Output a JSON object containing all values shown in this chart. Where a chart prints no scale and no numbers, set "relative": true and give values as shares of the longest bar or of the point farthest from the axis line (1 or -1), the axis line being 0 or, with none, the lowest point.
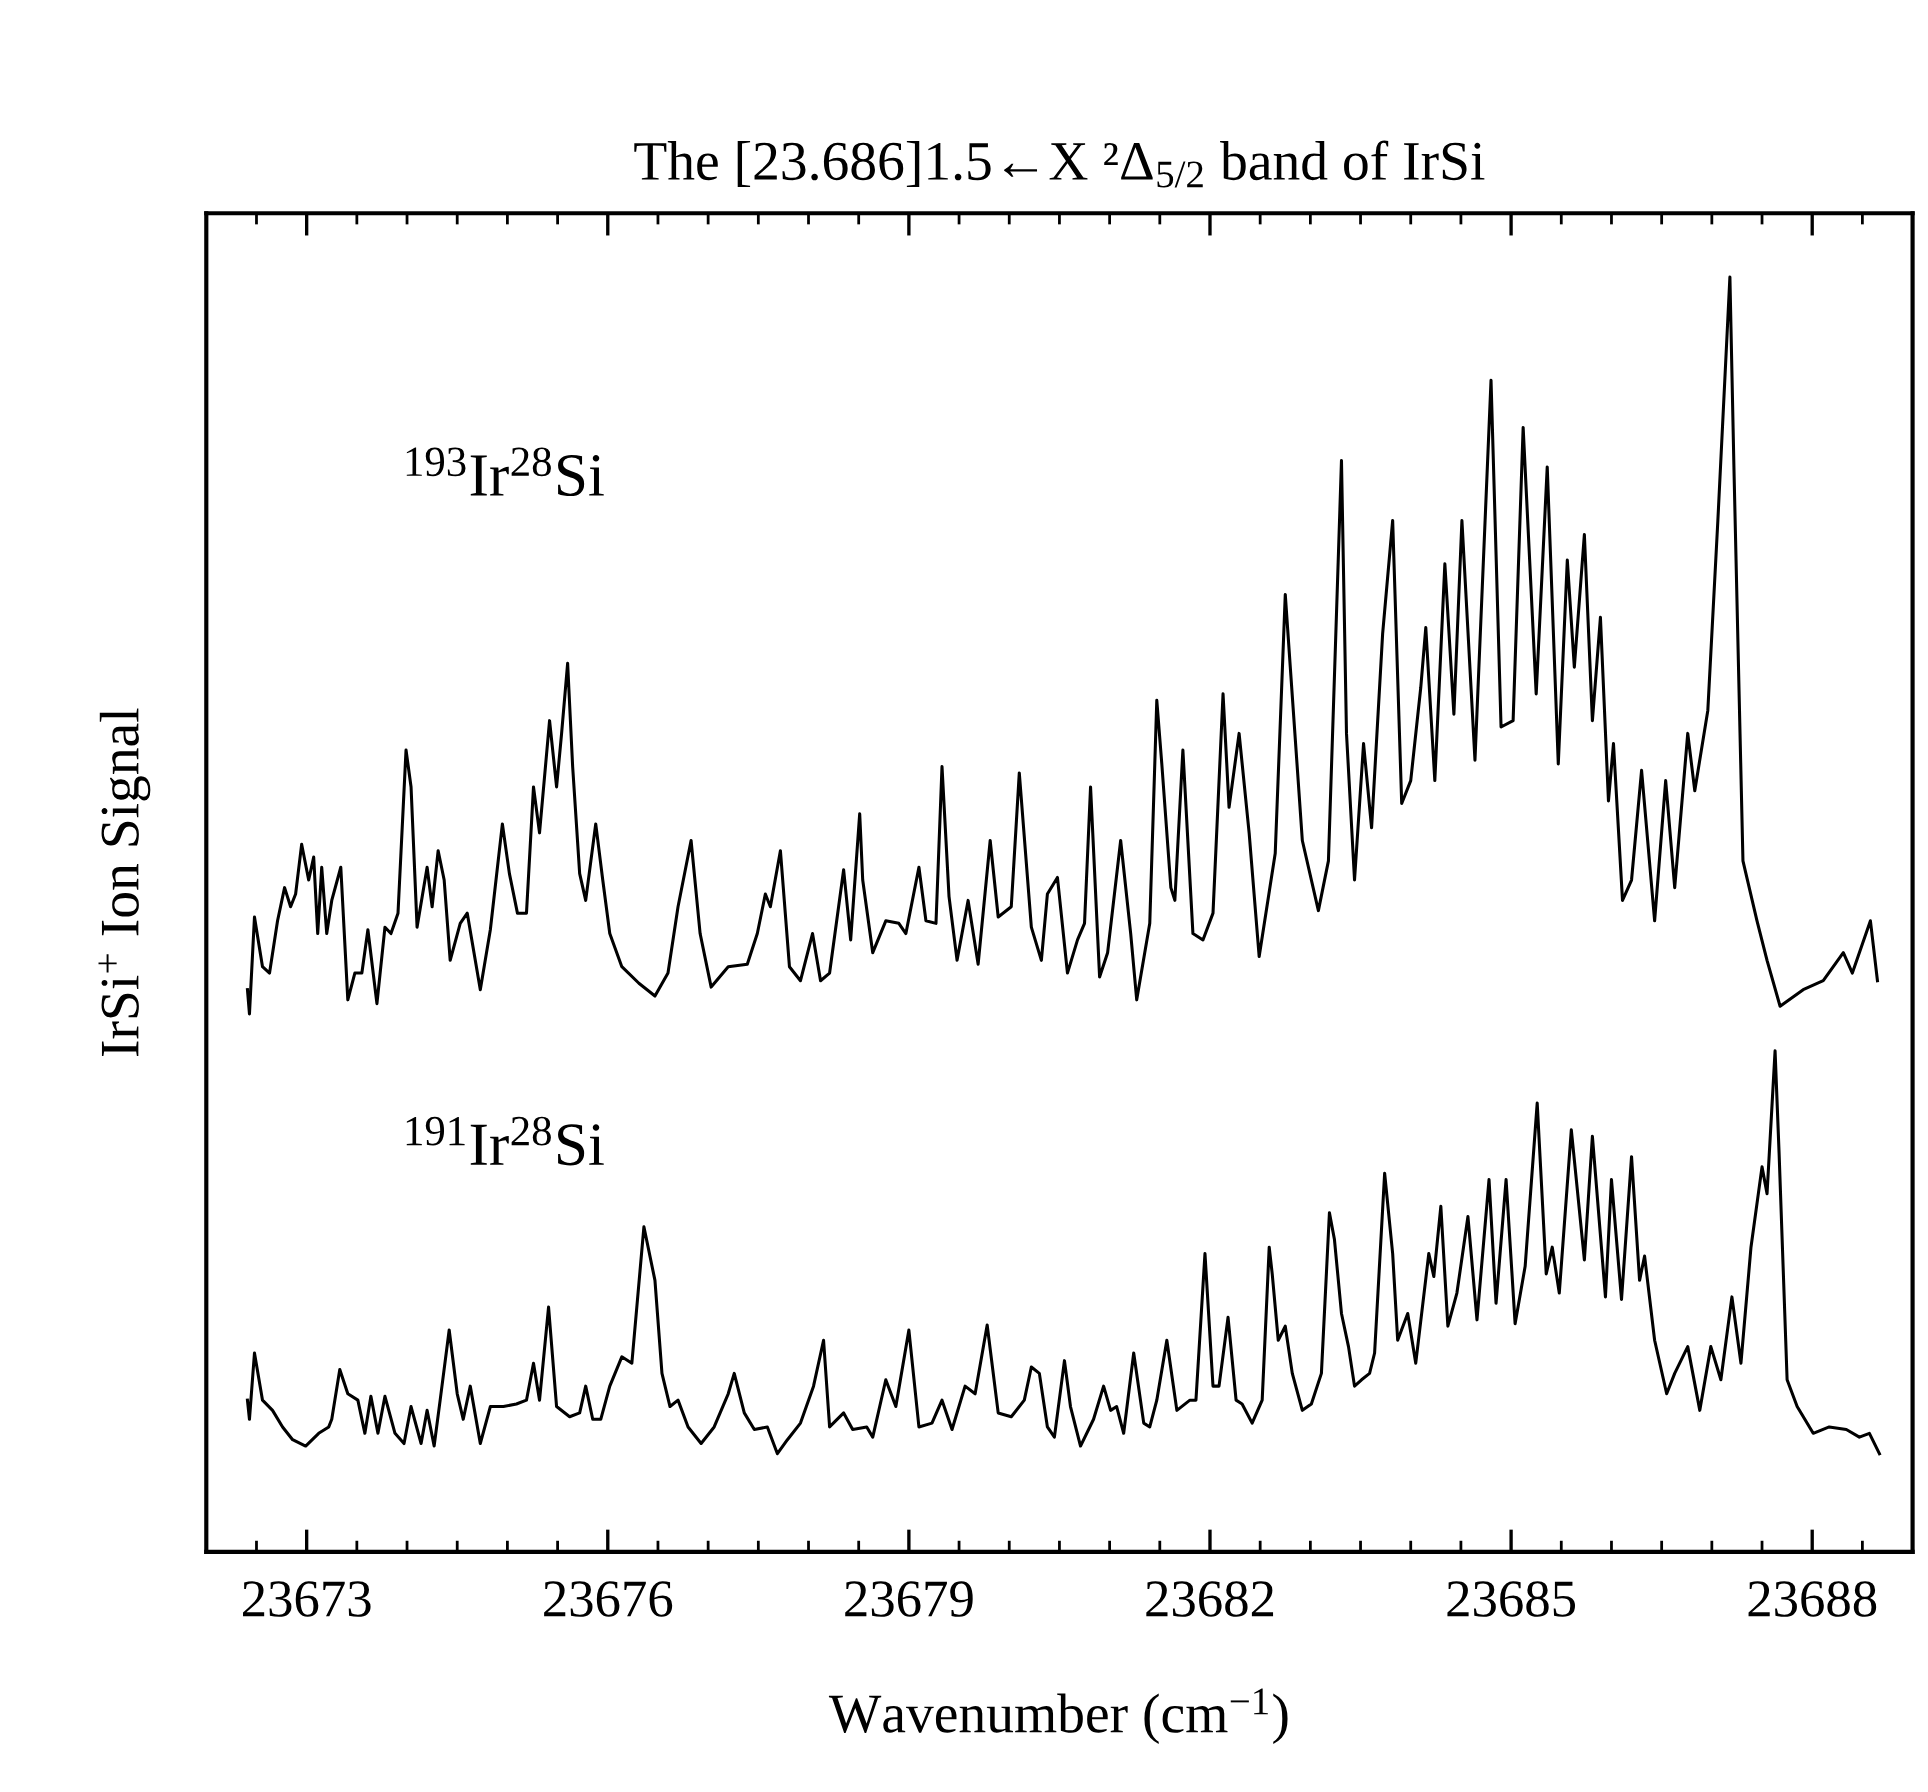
{
  "chart_data": {
    "type": "line",
    "title": "The [23.686]1.5←X ²Δ$_{5/2}$ band of IrSi",
    "xlabel": "Wavenumber (cm$^{−1}$)",
    "ylabel": "IrSi$^{+}$ Ion Signal",
    "relative": true,
    "legend": false,
    "grid": false,
    "marker": "none",
    "line_style": "solid",
    "xlim": [
      23672,
      23689
    ],
    "xticks": [
      23673,
      23676,
      23679,
      23682,
      23685,
      23688,
      {
        "value": 23672.5,
        "label": null
      },
      {
        "value": 23673.5,
        "label": null
      },
      {
        "value": 23674,
        "label": null
      },
      {
        "value": 23674.5,
        "label": null
      },
      {
        "value": 23675,
        "label": null
      },
      {
        "value": 23675.5,
        "label": null
      },
      {
        "value": 23676.5,
        "label": null
      },
      {
        "value": 23677,
        "label": null
      },
      {
        "value": 23677.5,
        "label": null
      },
      {
        "value": 23678,
        "label": null
      },
      {
        "value": 23678.5,
        "label": null
      },
      {
        "value": 23679.5,
        "label": null
      },
      {
        "value": 23680,
        "label": null
      },
      {
        "value": 23680.5,
        "label": null
      },
      {
        "value": 23681,
        "label": null
      },
      {
        "value": 23681.5,
        "label": null
      },
      {
        "value": 23682.5,
        "label": null
      },
      {
        "value": 23683,
        "label": null
      },
      {
        "value": 23683.5,
        "label": null
      },
      {
        "value": 23684,
        "label": null
      },
      {
        "value": 23684.5,
        "label": null
      },
      {
        "value": 23685.5,
        "label": null
      },
      {
        "value": 23686,
        "label": null
      },
      {
        "value": 23686.5,
        "label": null
      },
      {
        "value": 23687,
        "label": null
      },
      {
        "value": 23687.5,
        "label": null
      },
      {
        "value": 23688.5,
        "label": null
      }
    ],
    "series": [
      {
        "name": "$^{193}$Ir$^{28}$Si",
        "color": "#000000",
        "x": [
          23672.41,
          23672.43,
          23672.48,
          23672.56,
          23672.63,
          23672.71,
          23672.78,
          23672.84,
          23672.89,
          23672.95,
          23673.02,
          23673.07,
          23673.11,
          23673.15,
          23673.2,
          23673.25,
          23673.34,
          23673.41,
          23673.48,
          23673.55,
          23673.61,
          23673.7,
          23673.78,
          23673.84,
          23673.91,
          23673.99,
          23674.04,
          23674.1,
          23674.2,
          23674.25,
          23674.31,
          23674.37,
          23674.43,
          23674.53,
          23674.6,
          23674.73,
          23674.83,
          23674.95,
          23675.02,
          23675.1,
          23675.19,
          23675.26,
          23675.32,
          23675.42,
          23675.49,
          23675.54,
          23675.6,
          23675.65,
          23675.72,
          23675.78,
          23675.88,
          23675.95,
          23676.02,
          23676.14,
          23676.31,
          23676.47,
          23676.6,
          23676.7,
          23676.83,
          23676.92,
          23677.03,
          23677.2,
          23677.39,
          23677.49,
          23677.57,
          23677.62,
          23677.72,
          23677.81,
          23677.92,
          23678.04,
          23678.12,
          23678.21,
          23678.35,
          23678.42,
          23678.51,
          23678.54,
          23678.64,
          23678.77,
          23678.9,
          23678.97,
          23679.1,
          23679.17,
          23679.27,
          23679.33,
          23679.4,
          23679.48,
          23679.59,
          23679.69,
          23679.81,
          23679.89,
          23680.02,
          23680.1,
          23680.22,
          23680.32,
          23680.38,
          23680.48,
          23680.58,
          23680.68,
          23680.75,
          23680.81,
          23680.9,
          23680.98,
          23681.11,
          23681.21,
          23681.27,
          23681.4,
          23681.47,
          23681.52,
          23681.61,
          23681.65,
          23681.73,
          23681.83,
          23681.93,
          23682.03,
          23682.13,
          23682.19,
          23682.29,
          23682.39,
          23682.49,
          23682.65,
          23682.75,
          23682.8,
          23682.92,
          23683.08,
          23683.18,
          23683.31,
          23683.36,
          23683.44,
          23683.53,
          23683.61,
          23683.72,
          23683.82,
          23683.91,
          23684.0,
          23684.1,
          23684.15,
          23684.24,
          23684.34,
          23684.43,
          23684.51,
          23684.64,
          23684.8,
          23684.9,
          23685.02,
          23685.12,
          23685.25,
          23685.36,
          23685.47,
          23685.56,
          23685.63,
          23685.73,
          23685.81,
          23685.89,
          23685.97,
          23686.02,
          23686.11,
          23686.2,
          23686.3,
          23686.43,
          23686.54,
          23686.63,
          23686.76,
          23686.83,
          23686.96,
          23687.06,
          23687.18,
          23687.22,
          23687.31,
          23687.45,
          23687.55,
          23687.68,
          23687.91,
          23688.11,
          23688.31,
          23688.4,
          23688.58,
          23688.65
        ],
        "values": [
          0.441,
          0.422,
          0.498,
          0.459,
          0.454,
          0.495,
          0.521,
          0.506,
          0.516,
          0.555,
          0.527,
          0.545,
          0.485,
          0.537,
          0.485,
          0.511,
          0.537,
          0.433,
          0.454,
          0.454,
          0.488,
          0.43,
          0.49,
          0.485,
          0.501,
          0.629,
          0.6,
          0.49,
          0.537,
          0.506,
          0.55,
          0.527,
          0.464,
          0.493,
          0.501,
          0.441,
          0.488,
          0.571,
          0.532,
          0.501,
          0.501,
          0.6,
          0.564,
          0.652,
          0.6,
          0.642,
          0.697,
          0.616,
          0.532,
          0.511,
          0.571,
          0.527,
          0.485,
          0.459,
          0.446,
          0.436,
          0.454,
          0.506,
          0.558,
          0.485,
          0.443,
          0.459,
          0.461,
          0.485,
          0.516,
          0.506,
          0.55,
          0.459,
          0.448,
          0.485,
          0.448,
          0.454,
          0.535,
          0.48,
          0.579,
          0.527,
          0.47,
          0.495,
          0.493,
          0.485,
          0.537,
          0.495,
          0.493,
          0.616,
          0.514,
          0.464,
          0.511,
          0.461,
          0.558,
          0.498,
          0.506,
          0.611,
          0.49,
          0.464,
          0.516,
          0.529,
          0.454,
          0.48,
          0.493,
          0.6,
          0.451,
          0.47,
          0.558,
          0.485,
          0.433,
          0.493,
          0.668,
          0.618,
          0.521,
          0.511,
          0.629,
          0.485,
          0.48,
          0.501,
          0.673,
          0.584,
          0.642,
          0.564,
          0.467,
          0.548,
          0.751,
          0.694,
          0.558,
          0.503,
          0.542,
          0.856,
          0.642,
          0.527,
          0.634,
          0.568,
          0.72,
          0.809,
          0.587,
          0.605,
          0.678,
          0.725,
          0.605,
          0.775,
          0.657,
          0.809,
          0.621,
          0.919,
          0.647,
          0.652,
          0.882,
          0.673,
          0.851,
          0.618,
          0.778,
          0.694,
          0.798,
          0.652,
          0.733,
          0.589,
          0.634,
          0.511,
          0.527,
          0.613,
          0.495,
          0.605,
          0.521,
          0.642,
          0.597,
          0.66,
          0.809,
          1.0,
          0.851,
          0.542,
          0.495,
          0.464,
          0.428,
          0.441,
          0.448,
          0.47,
          0.454,
          0.495,
          0.448
        ]
      },
      {
        "name": "$^{191}$Ir$^{28}$Si",
        "color": "#000000",
        "x": [
          23672.41,
          23672.43,
          23672.48,
          23672.56,
          23672.66,
          23672.76,
          23672.86,
          23672.99,
          23673.12,
          23673.22,
          23673.25,
          23673.33,
          23673.41,
          23673.51,
          23673.58,
          23673.64,
          23673.71,
          23673.78,
          23673.88,
          23673.97,
          23674.04,
          23674.14,
          23674.2,
          23674.27,
          23674.33,
          23674.42,
          23674.5,
          23674.56,
          23674.63,
          23674.73,
          23674.83,
          23674.96,
          23675.09,
          23675.19,
          23675.26,
          23675.32,
          23675.41,
          23675.49,
          23675.62,
          23675.72,
          23675.78,
          23675.85,
          23675.93,
          23676.02,
          23676.14,
          23676.24,
          23676.36,
          23676.47,
          23676.54,
          23676.62,
          23676.7,
          23676.8,
          23676.93,
          23677.06,
          23677.2,
          23677.26,
          23677.36,
          23677.46,
          23677.59,
          23677.69,
          23677.79,
          23677.92,
          23678.05,
          23678.15,
          23678.21,
          23678.35,
          23678.44,
          23678.58,
          23678.64,
          23678.77,
          23678.87,
          23679.0,
          23679.1,
          23679.23,
          23679.33,
          23679.43,
          23679.56,
          23679.66,
          23679.78,
          23679.89,
          23680.02,
          23680.15,
          23680.22,
          23680.3,
          23680.38,
          23680.45,
          23680.55,
          23680.61,
          23680.71,
          23680.84,
          23680.94,
          23681.01,
          23681.07,
          23681.14,
          23681.24,
          23681.34,
          23681.4,
          23681.47,
          23681.57,
          23681.67,
          23681.8,
          23681.86,
          23681.95,
          23682.03,
          23682.09,
          23682.18,
          23682.26,
          23682.32,
          23682.42,
          23682.52,
          23682.59,
          23682.62,
          23682.68,
          23682.75,
          23682.82,
          23682.92,
          23683.01,
          23683.11,
          23683.19,
          23683.24,
          23683.31,
          23683.38,
          23683.44,
          23683.51,
          23683.59,
          23683.64,
          23683.74,
          23683.82,
          23683.87,
          23683.97,
          23684.05,
          23684.18,
          23684.23,
          23684.3,
          23684.37,
          23684.46,
          23684.57,
          23684.66,
          23684.78,
          23684.85,
          23684.95,
          23685.04,
          23685.14,
          23685.26,
          23685.35,
          23685.41,
          23685.48,
          23685.6,
          23685.73,
          23685.81,
          23685.94,
          23686.0,
          23686.1,
          23686.2,
          23686.28,
          23686.33,
          23686.43,
          23686.55,
          23686.63,
          23686.76,
          23686.88,
          23686.99,
          23687.09,
          23687.2,
          23687.29,
          23687.39,
          23687.5,
          23687.55,
          23687.63,
          23687.67,
          23687.75,
          23687.85,
          23688.01,
          23688.17,
          23688.34,
          23688.47,
          23688.57,
          23688.67
        ],
        "values": [
          0.119,
          0.104,
          0.156,
          0.119,
          0.111,
          0.098,
          0.088,
          0.083,
          0.093,
          0.098,
          0.104,
          0.143,
          0.124,
          0.119,
          0.093,
          0.122,
          0.093,
          0.122,
          0.093,
          0.085,
          0.114,
          0.085,
          0.111,
          0.083,
          0.119,
          0.174,
          0.124,
          0.104,
          0.13,
          0.085,
          0.114,
          0.114,
          0.116,
          0.119,
          0.148,
          0.119,
          0.192,
          0.114,
          0.106,
          0.109,
          0.13,
          0.104,
          0.104,
          0.13,
          0.153,
          0.148,
          0.255,
          0.213,
          0.14,
          0.114,
          0.119,
          0.098,
          0.085,
          0.098,
          0.124,
          0.14,
          0.109,
          0.096,
          0.098,
          0.077,
          0.088,
          0.101,
          0.13,
          0.166,
          0.098,
          0.109,
          0.096,
          0.098,
          0.09,
          0.135,
          0.114,
          0.174,
          0.098,
          0.101,
          0.119,
          0.096,
          0.13,
          0.124,
          0.178,
          0.109,
          0.106,
          0.119,
          0.145,
          0.14,
          0.098,
          0.09,
          0.15,
          0.114,
          0.083,
          0.104,
          0.13,
          0.111,
          0.114,
          0.093,
          0.156,
          0.101,
          0.098,
          0.119,
          0.166,
          0.111,
          0.119,
          0.119,
          0.234,
          0.13,
          0.13,
          0.184,
          0.119,
          0.116,
          0.101,
          0.119,
          0.239,
          0.218,
          0.166,
          0.177,
          0.14,
          0.111,
          0.116,
          0.14,
          0.266,
          0.245,
          0.187,
          0.161,
          0.13,
          0.135,
          0.14,
          0.156,
          0.297,
          0.234,
          0.166,
          0.187,
          0.148,
          0.234,
          0.216,
          0.271,
          0.177,
          0.203,
          0.263,
          0.182,
          0.292,
          0.195,
          0.292,
          0.179,
          0.224,
          0.352,
          0.218,
          0.239,
          0.203,
          0.331,
          0.229,
          0.326,
          0.2,
          0.292,
          0.198,
          0.31,
          0.213,
          0.232,
          0.166,
          0.124,
          0.14,
          0.161,
          0.111,
          0.161,
          0.135,
          0.2,
          0.148,
          0.239,
          0.302,
          0.281,
          0.393,
          0.313,
          0.135,
          0.114,
          0.093,
          0.098,
          0.096,
          0.09,
          0.093,
          0.077
        ]
      }
    ]
  }
}
